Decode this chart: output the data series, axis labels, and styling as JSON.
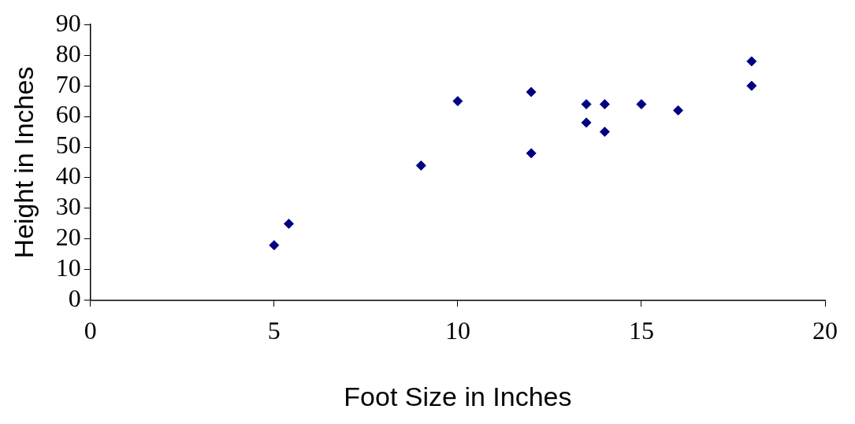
{
  "chart_data": {
    "type": "scatter",
    "xlabel": "Foot Size in Inches",
    "ylabel": "Height in Inches",
    "x": [
      5,
      5.4,
      9,
      10,
      12,
      12,
      13.5,
      13.5,
      14,
      14,
      15,
      16,
      18,
      18
    ],
    "values": [
      18,
      25,
      44,
      65,
      68,
      48,
      64,
      58,
      64,
      55,
      64,
      62,
      78,
      70
    ],
    "color": "#000080",
    "marker": "diamond",
    "grid": false,
    "legend": false,
    "xlim": [
      0,
      20
    ],
    "xticks": [
      0,
      5,
      10,
      15,
      20
    ],
    "ylim": [
      0,
      90
    ],
    "yticks": [
      0,
      10,
      20,
      30,
      40,
      50,
      60,
      70,
      80,
      90
    ]
  }
}
